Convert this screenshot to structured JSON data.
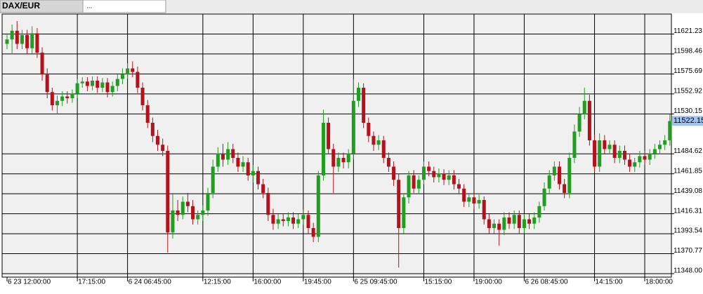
{
  "tabs": [
    "DAX/EUR",
    "..."
  ],
  "chart_data": {
    "type": "candlestick",
    "current_price": 11522.15,
    "up_color": "#1f9e1f",
    "down_color": "#b3121b",
    "grid": true,
    "ylim": [
      11344,
      11644
    ],
    "yticks": [
      {
        "value": 11348,
        "label": "11348.00"
      },
      11370.77,
      11393.54,
      11416.31,
      11439.08,
      11461.85,
      11484.62,
      11530.15,
      11552.92,
      11575.69,
      11598.46,
      11621.23
    ],
    "categories": [
      "6 23 12:00:00",
      null,
      null,
      null,
      null,
      null,
      null,
      null,
      null,
      null,
      null,
      null,
      null,
      null,
      "17:15:00",
      null,
      null,
      null,
      null,
      null,
      null,
      null,
      null,
      null,
      "6 24 06:45:00",
      null,
      null,
      null,
      null,
      null,
      null,
      null,
      null,
      null,
      null,
      null,
      null,
      null,
      null,
      "12:15:00",
      null,
      null,
      null,
      null,
      null,
      null,
      null,
      null,
      null,
      "16:00:00",
      null,
      null,
      null,
      null,
      null,
      null,
      null,
      null,
      null,
      "19:45:00",
      null,
      null,
      null,
      null,
      null,
      null,
      null,
      null,
      null,
      "6 25 09:45:00",
      null,
      null,
      null,
      null,
      null,
      null,
      null,
      null,
      null,
      null,
      null,
      null,
      null,
      "15:15:00",
      null,
      null,
      null,
      null,
      null,
      null,
      null,
      null,
      null,
      "19:00:00",
      null,
      null,
      null,
      null,
      null,
      null,
      null,
      null,
      null,
      "6 26 08:45:00",
      null,
      null,
      null,
      null,
      null,
      null,
      null,
      null,
      null,
      null,
      null,
      null,
      null,
      "14:15:00",
      null,
      null,
      null,
      null,
      null,
      null,
      null,
      null,
      null,
      "18:00:00",
      null,
      null,
      null,
      null,
      null
    ],
    "open": [
      11610,
      11615,
      11625,
      11610,
      11620,
      11605,
      11622,
      11600,
      11575,
      11555,
      11540,
      11545,
      11550,
      11548,
      11553,
      11565,
      11567,
      11562,
      11568,
      11560,
      11566,
      11555,
      11562,
      11570,
      11575,
      11582,
      11578,
      11560,
      11540,
      11520,
      11505,
      11495,
      11488,
      11395,
      11420,
      11415,
      11430,
      11425,
      11410,
      11415,
      11420,
      11440,
      11470,
      11485,
      11478,
      11490,
      11480,
      11470,
      11475,
      11460,
      11465,
      11450,
      11440,
      11415,
      11405,
      11410,
      11408,
      11412,
      11405,
      11410,
      11415,
      11400,
      11390,
      11460,
      11520,
      11490,
      11470,
      11480,
      11475,
      11485,
      11545,
      11560,
      11520,
      11505,
      11495,
      11500,
      11480,
      11470,
      11455,
      11400,
      11435,
      11460,
      11445,
      11455,
      11470,
      11465,
      11458,
      11462,
      11455,
      11460,
      11450,
      11445,
      11430,
      11435,
      11428,
      11432,
      11410,
      11400,
      11405,
      11398,
      11412,
      11405,
      11415,
      11400,
      11410,
      11405,
      11412,
      11425,
      11445,
      11460,
      11470,
      11450,
      11440,
      11480,
      11510,
      11530,
      11545,
      11500,
      11470,
      11500,
      11490,
      11495,
      11480,
      11488,
      11478,
      11470,
      11475,
      11482,
      11478,
      11485,
      11490,
      11495,
      11500
    ],
    "high": [
      11622,
      11632,
      11636,
      11626,
      11626,
      11630,
      11628,
      11606,
      11582,
      11560,
      11551,
      11556,
      11556,
      11558,
      11570,
      11572,
      11572,
      11573,
      11573,
      11571,
      11571,
      11567,
      11575,
      11582,
      11588,
      11590,
      11584,
      11566,
      11546,
      11526,
      11512,
      11502,
      11494,
      11440,
      11432,
      11436,
      11440,
      11432,
      11420,
      11426,
      11446,
      11478,
      11492,
      11496,
      11498,
      11496,
      11486,
      11482,
      11480,
      11472,
      11470,
      11456,
      11446,
      11422,
      11416,
      11416,
      11418,
      11418,
      11416,
      11421,
      11420,
      11406,
      11465,
      11535,
      11526,
      11496,
      11486,
      11486,
      11490,
      11570,
      11566,
      11565,
      11526,
      11510,
      11506,
      11505,
      11486,
      11476,
      11462,
      11440,
      11465,
      11466,
      11460,
      11476,
      11476,
      11470,
      11468,
      11467,
      11466,
      11466,
      11456,
      11450,
      11440,
      11440,
      11438,
      11436,
      11416,
      11410,
      11410,
      11418,
      11418,
      11420,
      11420,
      11416,
      11416,
      11418,
      11430,
      11452,
      11466,
      11476,
      11476,
      11456,
      11486,
      11518,
      11538,
      11560,
      11552,
      11506,
      11508,
      11506,
      11500,
      11500,
      11494,
      11494,
      11484,
      11480,
      11488,
      11488,
      11490,
      11496,
      11500,
      11506,
      11530
    ],
    "low": [
      11604,
      11598,
      11604,
      11604,
      11598,
      11599,
      11594,
      11568,
      11548,
      11534,
      11530,
      11539,
      11542,
      11543,
      11548,
      11560,
      11556,
      11557,
      11554,
      11555,
      11549,
      11550,
      11556,
      11564,
      11570,
      11572,
      11554,
      11534,
      11514,
      11498,
      11488,
      11482,
      11372,
      11388,
      11408,
      11410,
      11418,
      11404,
      11404,
      11408,
      11414,
      11434,
      11464,
      11470,
      11472,
      11474,
      11464,
      11464,
      11454,
      11452,
      11444,
      11434,
      11408,
      11398,
      11399,
      11402,
      11402,
      11399,
      11400,
      11404,
      11394,
      11384,
      11384,
      11454,
      11484,
      11440,
      11464,
      11468,
      11468,
      11478,
      11538,
      11514,
      11498,
      11488,
      11489,
      11474,
      11464,
      11448,
      11355,
      11394,
      11428,
      11440,
      11439,
      11450,
      11459,
      11452,
      11452,
      11449,
      11449,
      11444,
      11439,
      11424,
      11424,
      11422,
      11422,
      11404,
      11394,
      11394,
      11380,
      11392,
      11399,
      11399,
      11394,
      11394,
      11399,
      11399,
      11406,
      11420,
      11439,
      11454,
      11444,
      11434,
      11434,
      11474,
      11504,
      11524,
      11494,
      11464,
      11464,
      11484,
      11484,
      11474,
      11474,
      11472,
      11464,
      11464,
      11469,
      11472,
      11472,
      11479,
      11484,
      11489,
      11494
    ],
    "close": [
      11615,
      11625,
      11610,
      11620,
      11605,
      11622,
      11600,
      11575,
      11555,
      11540,
      11545,
      11550,
      11548,
      11553,
      11565,
      11567,
      11562,
      11568,
      11560,
      11566,
      11555,
      11562,
      11570,
      11575,
      11582,
      11578,
      11560,
      11540,
      11520,
      11505,
      11495,
      11488,
      11395,
      11420,
      11415,
      11430,
      11425,
      11410,
      11415,
      11420,
      11440,
      11470,
      11485,
      11478,
      11490,
      11480,
      11470,
      11475,
      11460,
      11465,
      11450,
      11440,
      11415,
      11405,
      11410,
      11408,
      11412,
      11405,
      11410,
      11415,
      11400,
      11390,
      11460,
      11520,
      11490,
      11470,
      11480,
      11475,
      11485,
      11545,
      11560,
      11520,
      11505,
      11495,
      11500,
      11480,
      11470,
      11455,
      11400,
      11435,
      11460,
      11445,
      11455,
      11470,
      11465,
      11458,
      11462,
      11455,
      11460,
      11450,
      11445,
      11430,
      11435,
      11428,
      11432,
      11410,
      11400,
      11405,
      11398,
      11412,
      11405,
      11415,
      11400,
      11410,
      11405,
      11412,
      11425,
      11445,
      11460,
      11470,
      11450,
      11440,
      11480,
      11510,
      11530,
      11545,
      11500,
      11470,
      11500,
      11490,
      11495,
      11480,
      11488,
      11478,
      11470,
      11475,
      11482,
      11478,
      11485,
      11490,
      11495,
      11500,
      11522
    ]
  }
}
